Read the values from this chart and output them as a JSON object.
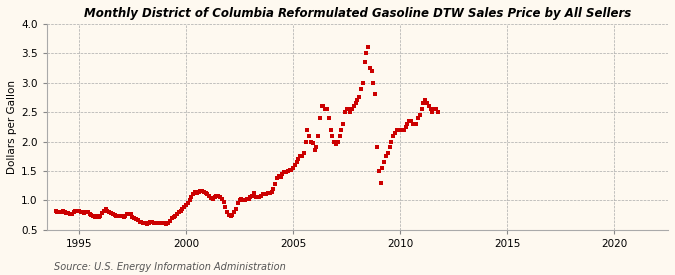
{
  "title": "District of Columbia Reformulated Gasoline DTW Sales Price by All Sellers",
  "title_prefix": "Monthly ",
  "ylabel": "Dollars per Gallon",
  "source": "Source: U.S. Energy Information Administration",
  "bg_color": "#FEF9F0",
  "plot_bg_color": "#FEF9F0",
  "marker_color": "#CC0000",
  "marker": "s",
  "marker_size": 2.5,
  "xlim": [
    1993.5,
    2022.5
  ],
  "ylim": [
    0.5,
    4.0
  ],
  "yticks": [
    0.5,
    1.0,
    1.5,
    2.0,
    2.5,
    3.0,
    3.5,
    4.0
  ],
  "xticks": [
    1995,
    2000,
    2005,
    2010,
    2015,
    2020
  ],
  "data": [
    [
      1993.917,
      0.82
    ],
    [
      1994.0,
      0.81
    ],
    [
      1994.083,
      0.8
    ],
    [
      1994.167,
      0.8
    ],
    [
      1994.25,
      0.82
    ],
    [
      1994.333,
      0.8
    ],
    [
      1994.417,
      0.79
    ],
    [
      1994.5,
      0.78
    ],
    [
      1994.583,
      0.77
    ],
    [
      1994.667,
      0.77
    ],
    [
      1994.75,
      0.8
    ],
    [
      1994.833,
      0.82
    ],
    [
      1994.917,
      0.82
    ],
    [
      1995.0,
      0.82
    ],
    [
      1995.083,
      0.8
    ],
    [
      1995.167,
      0.8
    ],
    [
      1995.25,
      0.79
    ],
    [
      1995.333,
      0.8
    ],
    [
      1995.417,
      0.8
    ],
    [
      1995.5,
      0.76
    ],
    [
      1995.583,
      0.75
    ],
    [
      1995.667,
      0.73
    ],
    [
      1995.75,
      0.72
    ],
    [
      1995.833,
      0.73
    ],
    [
      1995.917,
      0.72
    ],
    [
      1996.0,
      0.74
    ],
    [
      1996.083,
      0.78
    ],
    [
      1996.167,
      0.82
    ],
    [
      1996.25,
      0.85
    ],
    [
      1996.333,
      0.82
    ],
    [
      1996.417,
      0.8
    ],
    [
      1996.5,
      0.78
    ],
    [
      1996.583,
      0.76
    ],
    [
      1996.667,
      0.75
    ],
    [
      1996.75,
      0.74
    ],
    [
      1996.833,
      0.74
    ],
    [
      1996.917,
      0.73
    ],
    [
      1997.0,
      0.73
    ],
    [
      1997.083,
      0.72
    ],
    [
      1997.167,
      0.73
    ],
    [
      1997.25,
      0.76
    ],
    [
      1997.333,
      0.77
    ],
    [
      1997.417,
      0.76
    ],
    [
      1997.5,
      0.72
    ],
    [
      1997.583,
      0.7
    ],
    [
      1997.667,
      0.68
    ],
    [
      1997.75,
      0.66
    ],
    [
      1997.833,
      0.64
    ],
    [
      1997.917,
      0.63
    ],
    [
      1998.0,
      0.62
    ],
    [
      1998.083,
      0.61
    ],
    [
      1998.167,
      0.6
    ],
    [
      1998.25,
      0.61
    ],
    [
      1998.333,
      0.63
    ],
    [
      1998.417,
      0.63
    ],
    [
      1998.5,
      0.62
    ],
    [
      1998.583,
      0.62
    ],
    [
      1998.667,
      0.62
    ],
    [
      1998.75,
      0.62
    ],
    [
      1998.833,
      0.62
    ],
    [
      1998.917,
      0.61
    ],
    [
      1999.0,
      0.61
    ],
    [
      1999.083,
      0.6
    ],
    [
      1999.167,
      0.61
    ],
    [
      1999.25,
      0.65
    ],
    [
      1999.333,
      0.7
    ],
    [
      1999.417,
      0.72
    ],
    [
      1999.5,
      0.74
    ],
    [
      1999.583,
      0.77
    ],
    [
      1999.667,
      0.8
    ],
    [
      1999.75,
      0.82
    ],
    [
      1999.833,
      0.85
    ],
    [
      1999.917,
      0.88
    ],
    [
      2000.0,
      0.92
    ],
    [
      2000.083,
      0.96
    ],
    [
      2000.167,
      1.0
    ],
    [
      2000.25,
      1.05
    ],
    [
      2000.333,
      1.1
    ],
    [
      2000.417,
      1.15
    ],
    [
      2000.5,
      1.13
    ],
    [
      2000.583,
      1.14
    ],
    [
      2000.667,
      1.16
    ],
    [
      2000.75,
      1.16
    ],
    [
      2000.833,
      1.15
    ],
    [
      2000.917,
      1.13
    ],
    [
      2001.0,
      1.1
    ],
    [
      2001.083,
      1.07
    ],
    [
      2001.167,
      1.04
    ],
    [
      2001.25,
      1.03
    ],
    [
      2001.333,
      1.05
    ],
    [
      2001.417,
      1.08
    ],
    [
      2001.5,
      1.08
    ],
    [
      2001.583,
      1.05
    ],
    [
      2001.667,
      1.02
    ],
    [
      2001.75,
      0.98
    ],
    [
      2001.833,
      0.88
    ],
    [
      2001.917,
      0.8
    ],
    [
      2002.0,
      0.75
    ],
    [
      2002.083,
      0.74
    ],
    [
      2002.167,
      0.75
    ],
    [
      2002.25,
      0.8
    ],
    [
      2002.333,
      0.85
    ],
    [
      2002.417,
      0.95
    ],
    [
      2002.5,
      1.0
    ],
    [
      2002.583,
      1.02
    ],
    [
      2002.667,
      1.0
    ],
    [
      2002.75,
      1.0
    ],
    [
      2002.833,
      1.02
    ],
    [
      2002.917,
      1.03
    ],
    [
      2003.0,
      1.05
    ],
    [
      2003.083,
      1.08
    ],
    [
      2003.167,
      1.12
    ],
    [
      2003.25,
      1.05
    ],
    [
      2003.333,
      1.05
    ],
    [
      2003.417,
      1.06
    ],
    [
      2003.5,
      1.08
    ],
    [
      2003.583,
      1.1
    ],
    [
      2003.667,
      1.1
    ],
    [
      2003.75,
      1.1
    ],
    [
      2003.833,
      1.12
    ],
    [
      2003.917,
      1.13
    ],
    [
      2004.0,
      1.15
    ],
    [
      2004.083,
      1.2
    ],
    [
      2004.167,
      1.28
    ],
    [
      2004.25,
      1.38
    ],
    [
      2004.333,
      1.42
    ],
    [
      2004.417,
      1.4
    ],
    [
      2004.5,
      1.44
    ],
    [
      2004.583,
      1.48
    ],
    [
      2004.667,
      1.48
    ],
    [
      2004.75,
      1.5
    ],
    [
      2004.833,
      1.52
    ],
    [
      2004.917,
      1.52
    ],
    [
      2005.0,
      1.55
    ],
    [
      2005.083,
      1.6
    ],
    [
      2005.167,
      1.65
    ],
    [
      2005.25,
      1.7
    ],
    [
      2005.333,
      1.75
    ],
    [
      2005.417,
      1.75
    ],
    [
      2005.5,
      1.8
    ],
    [
      2005.583,
      2.0
    ],
    [
      2005.667,
      2.2
    ],
    [
      2005.75,
      2.1
    ],
    [
      2005.833,
      2.0
    ],
    [
      2005.917,
      1.98
    ],
    [
      2006.0,
      1.85
    ],
    [
      2006.083,
      1.9
    ],
    [
      2006.167,
      2.1
    ],
    [
      2006.25,
      2.4
    ],
    [
      2006.333,
      2.6
    ],
    [
      2006.417,
      2.6
    ],
    [
      2006.5,
      2.55
    ],
    [
      2006.583,
      2.55
    ],
    [
      2006.667,
      2.4
    ],
    [
      2006.75,
      2.2
    ],
    [
      2006.833,
      2.1
    ],
    [
      2006.917,
      2.0
    ],
    [
      2007.0,
      1.95
    ],
    [
      2007.083,
      2.0
    ],
    [
      2007.167,
      2.1
    ],
    [
      2007.25,
      2.2
    ],
    [
      2007.333,
      2.3
    ],
    [
      2007.417,
      2.5
    ],
    [
      2007.5,
      2.55
    ],
    [
      2007.583,
      2.55
    ],
    [
      2007.667,
      2.5
    ],
    [
      2007.75,
      2.55
    ],
    [
      2007.833,
      2.6
    ],
    [
      2007.917,
      2.65
    ],
    [
      2008.0,
      2.7
    ],
    [
      2008.083,
      2.75
    ],
    [
      2008.167,
      2.9
    ],
    [
      2008.25,
      3.0
    ],
    [
      2008.333,
      3.35
    ],
    [
      2008.417,
      3.5
    ],
    [
      2008.5,
      3.6
    ],
    [
      2008.583,
      3.25
    ],
    [
      2008.667,
      3.2
    ],
    [
      2008.75,
      3.0
    ],
    [
      2008.833,
      2.8
    ],
    [
      2008.917,
      1.9
    ],
    [
      2009.0,
      1.5
    ],
    [
      2009.083,
      1.3
    ],
    [
      2009.167,
      1.55
    ],
    [
      2009.25,
      1.65
    ],
    [
      2009.333,
      1.75
    ],
    [
      2009.417,
      1.8
    ],
    [
      2009.5,
      1.9
    ],
    [
      2009.583,
      2.0
    ],
    [
      2009.667,
      2.1
    ],
    [
      2009.75,
      2.15
    ],
    [
      2009.833,
      2.2
    ],
    [
      2009.917,
      2.2
    ],
    [
      2010.0,
      2.2
    ],
    [
      2010.083,
      2.2
    ],
    [
      2010.167,
      2.2
    ],
    [
      2010.25,
      2.25
    ],
    [
      2010.333,
      2.3
    ],
    [
      2010.417,
      2.35
    ],
    [
      2010.5,
      2.35
    ],
    [
      2010.583,
      2.3
    ],
    [
      2010.667,
      2.3
    ],
    [
      2010.75,
      2.3
    ],
    [
      2010.833,
      2.4
    ],
    [
      2010.917,
      2.45
    ],
    [
      2011.0,
      2.55
    ],
    [
      2011.083,
      2.65
    ],
    [
      2011.167,
      2.7
    ],
    [
      2011.25,
      2.65
    ],
    [
      2011.333,
      2.6
    ],
    [
      2011.417,
      2.55
    ],
    [
      2011.5,
      2.5
    ],
    [
      2011.583,
      2.55
    ],
    [
      2011.667,
      2.55
    ],
    [
      2011.75,
      2.5
    ]
  ]
}
